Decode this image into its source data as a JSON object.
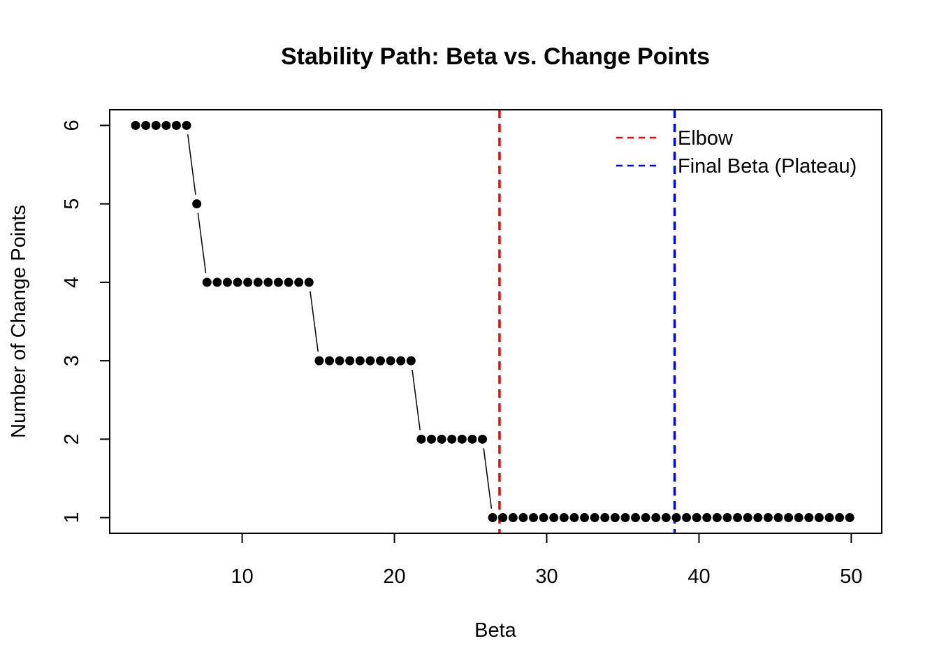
{
  "chart_data": {
    "type": "scatter",
    "title": "Stability Path: Beta vs. Change Points",
    "xlabel": "Beta",
    "ylabel": "Number of Change Points",
    "xlim": [
      1.3,
      52.0
    ],
    "ylim": [
      0.8,
      6.2
    ],
    "x_ticks": [
      10,
      20,
      30,
      40,
      50
    ],
    "y_ticks": [
      1,
      2,
      3,
      4,
      5,
      6
    ],
    "grid": false,
    "series": [
      {
        "x": [
          3.0,
          3.67,
          4.34,
          5.01,
          5.68,
          6.35,
          7.02,
          7.69,
          8.36,
          9.03,
          9.7,
          10.37,
          11.04,
          11.71,
          12.38,
          13.05,
          13.72,
          14.39,
          15.06,
          15.73,
          16.4,
          17.07,
          17.74,
          18.41,
          19.08,
          19.75,
          20.42,
          21.09,
          21.76,
          22.43,
          23.1,
          23.77,
          24.44,
          25.11,
          25.78,
          26.45,
          27.12,
          27.79,
          28.46,
          29.13,
          29.8,
          30.47,
          31.14,
          31.81,
          32.48,
          33.15,
          33.82,
          34.49,
          35.16,
          35.83,
          36.5,
          37.17,
          37.84,
          38.51,
          39.18,
          39.85,
          40.52,
          41.19,
          41.86,
          42.53,
          43.2,
          43.87,
          44.54,
          45.21,
          45.88,
          46.55,
          47.22,
          47.89,
          48.56,
          49.23,
          49.9
        ],
        "values": [
          6,
          6,
          6,
          6,
          6,
          6,
          5,
          4,
          4,
          4,
          4,
          4,
          4,
          4,
          4,
          4,
          4,
          4,
          3,
          3,
          3,
          3,
          3,
          3,
          3,
          3,
          3,
          3,
          2,
          2,
          2,
          2,
          2,
          2,
          2,
          1,
          1,
          1,
          1,
          1,
          1,
          1,
          1,
          1,
          1,
          1,
          1,
          1,
          1,
          1,
          1,
          1,
          1,
          1,
          1,
          1,
          1,
          1,
          1,
          1,
          1,
          1,
          1,
          1,
          1,
          1,
          1,
          1,
          1,
          1,
          1
        ],
        "color": "#000000",
        "marker": "filled-circle",
        "line": "connected"
      }
    ],
    "vlines": [
      {
        "name": "Elbow",
        "x": 26.9,
        "color": "#ff0000",
        "style": "dashed"
      },
      {
        "name": "Final Beta (Plateau)",
        "x": 38.4,
        "color": "#0000ff",
        "style": "dashed"
      }
    ],
    "legend": {
      "placement": "top-right",
      "entries": [
        "Elbow",
        "Final Beta (Plateau)"
      ]
    }
  }
}
